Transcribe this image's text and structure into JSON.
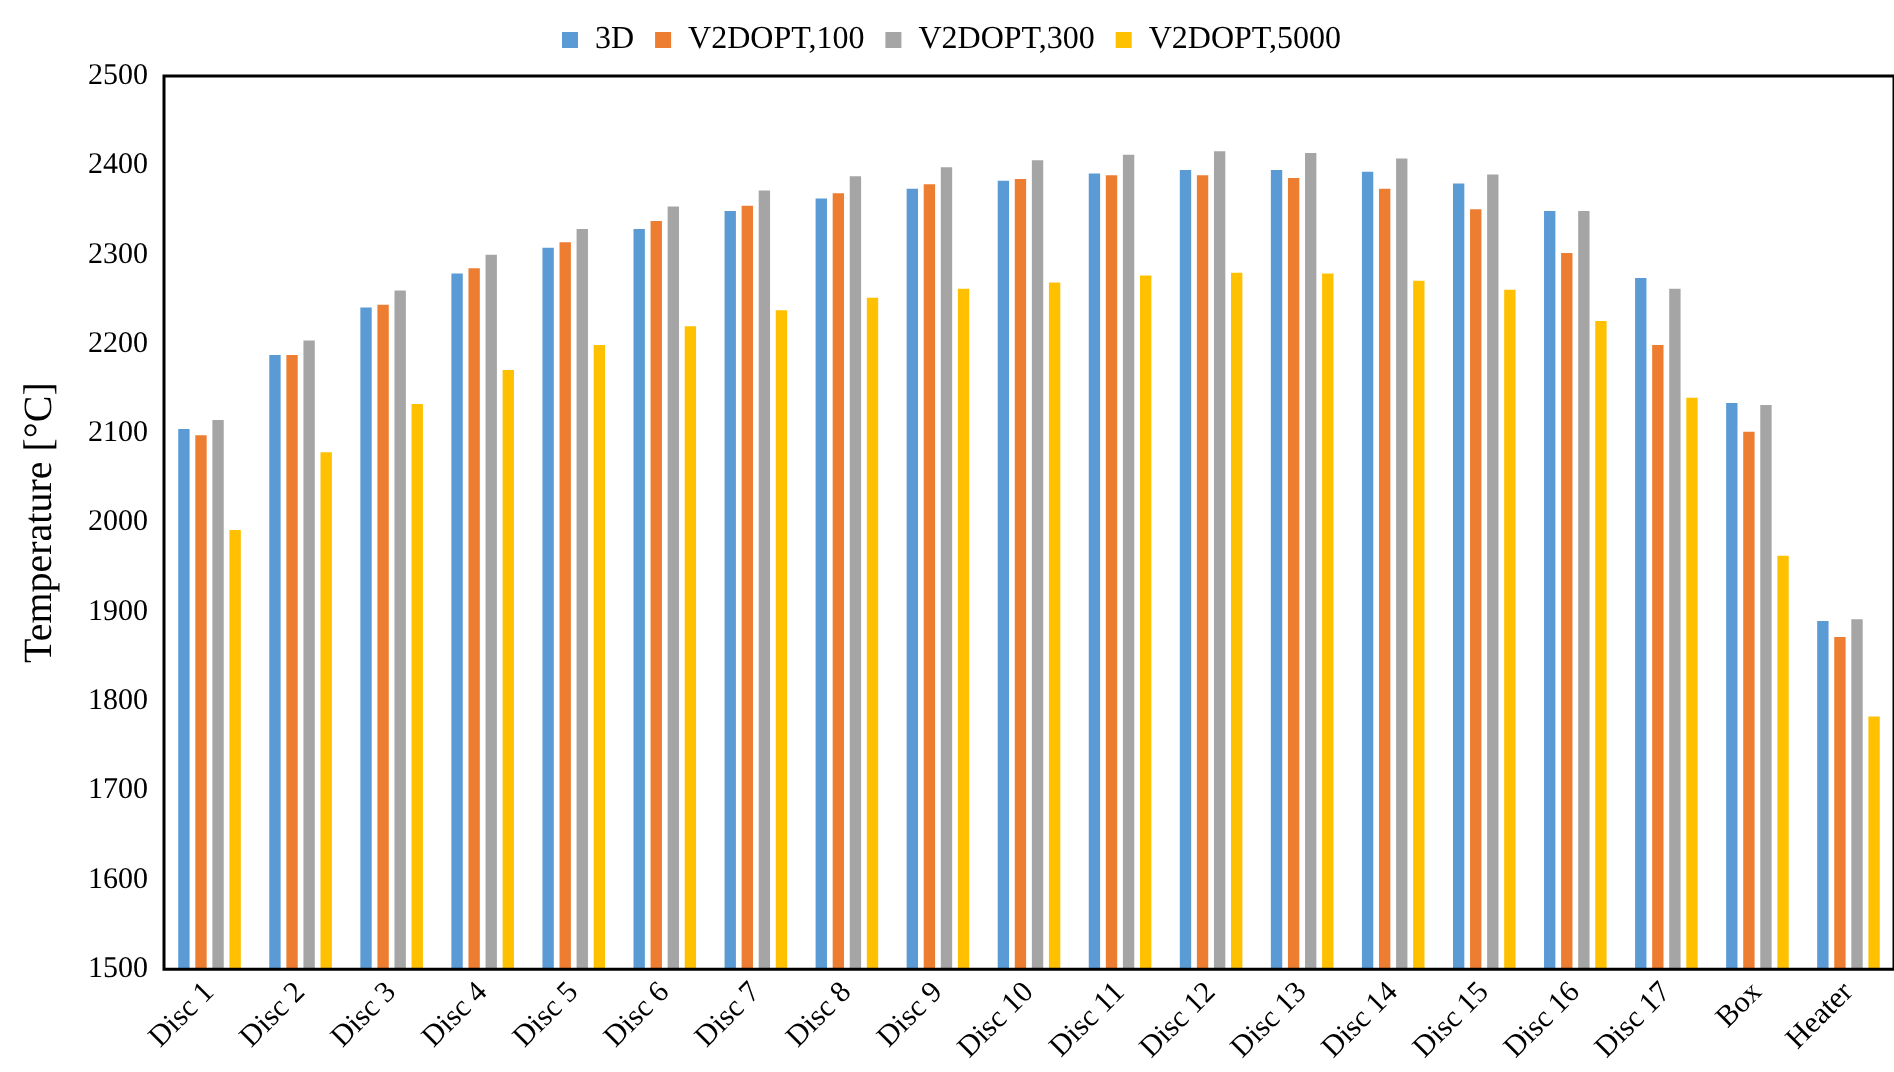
{
  "chart_data": {
    "type": "bar",
    "ylabel": "Temperature [°C]",
    "categories": [
      "Disc 1",
      "Disc 2",
      "Disc 3",
      "Disc 4",
      "Disc 5",
      "Disc 6",
      "Disc 7",
      "Disc 8",
      "Disc 9",
      "Disc 10",
      "Disc 11",
      "Disc 12",
      "Disc 13",
      "Disc 14",
      "Disc 15",
      "Disc 16",
      "Disc 17",
      "Box",
      "Heater"
    ],
    "series": [
      {
        "name": "3D",
        "color": "#5b9bd5",
        "values": [
          2107,
          2190,
          2243,
          2281,
          2310,
          2331,
          2351,
          2365,
          2376,
          2385,
          2393,
          2397,
          2397,
          2395,
          2382,
          2351,
          2276,
          2136,
          1892
        ]
      },
      {
        "name": "V2DOPT,100",
        "color": "#ed7d31",
        "values": [
          2100,
          2190,
          2246,
          2287,
          2316,
          2340,
          2357,
          2371,
          2381,
          2387,
          2391,
          2391,
          2388,
          2376,
          2353,
          2304,
          2201,
          2104,
          1874
        ]
      },
      {
        "name": "V2DOPT,300",
        "color": "#a5a5a5",
        "values": [
          2117,
          2206,
          2262,
          2302,
          2331,
          2356,
          2374,
          2390,
          2400,
          2408,
          2414,
          2418,
          2416,
          2410,
          2392,
          2351,
          2264,
          2134,
          1894
        ]
      },
      {
        "name": "V2DOPT,5000",
        "color": "#ffc000",
        "values": [
          1994,
          2081,
          2135,
          2173,
          2201,
          2222,
          2240,
          2254,
          2264,
          2271,
          2279,
          2282,
          2281,
          2273,
          2263,
          2228,
          2142,
          1965,
          1785
        ]
      }
    ],
    "ylim": [
      1500,
      2500
    ],
    "yticks": [
      1500,
      1600,
      1700,
      1800,
      1900,
      2000,
      2100,
      2200,
      2300,
      2400,
      2500
    ],
    "grid": false,
    "legend": "top"
  }
}
